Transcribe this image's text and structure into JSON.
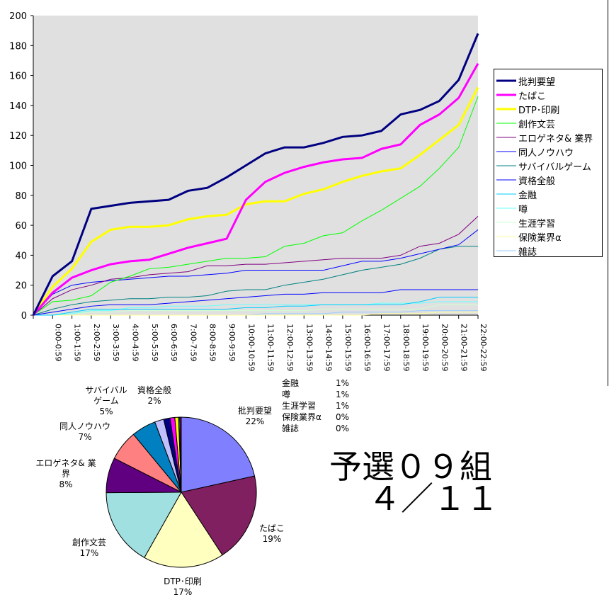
{
  "chart_data": [
    {
      "type": "line",
      "title": "",
      "xlabel": "",
      "ylabel": "",
      "ylim": [
        0,
        200
      ],
      "yticks": [
        0,
        20,
        40,
        60,
        80,
        100,
        120,
        140,
        160,
        180,
        200
      ],
      "grid": false,
      "legend_position": "right",
      "categories": [
        "",
        "0:00-0:59",
        "1:00-1:59",
        "2:00-2:59",
        "3:00-3:59",
        "4:00-4:59",
        "5:00-5:59",
        "6:00-6:59",
        "7:00-7:59",
        "8:00-8:59",
        "9:00-9:59",
        "10:00-10:59",
        "11:00-11:59",
        "12:00-12:59",
        "13:00-13:59",
        "14:00-14:59",
        "15:00-15:59",
        "16:00-16:59",
        "17:00-17:59",
        "18:00-18:59",
        "19:00-19:59",
        "20:00-20:59",
        "21:00-21:59",
        "22:00-22:59"
      ],
      "series": [
        {
          "name": "批判要望",
          "color": "#000080",
          "width": 3,
          "values": [
            0,
            26,
            36,
            71,
            73,
            75,
            76,
            77,
            83,
            85,
            92,
            100,
            108,
            112,
            112,
            115,
            119,
            120,
            123,
            134,
            137,
            143,
            157,
            188
          ]
        },
        {
          "name": "たばこ",
          "color": "#FF00FF",
          "width": 3,
          "values": [
            0,
            15,
            25,
            30,
            34,
            36,
            37,
            41,
            45,
            48,
            51,
            77,
            89,
            95,
            99,
            102,
            104,
            105,
            111,
            114,
            127,
            134,
            145,
            168
          ]
        },
        {
          "name": "DTP･印刷",
          "color": "#FFFF00",
          "width": 3,
          "values": [
            0,
            19,
            31,
            49,
            57,
            59,
            59,
            60,
            64,
            66,
            67,
            74,
            76,
            76,
            81,
            84,
            89,
            93,
            96,
            98,
            107,
            117,
            127,
            152
          ]
        },
        {
          "name": "創作文芸",
          "color": "#00FF00",
          "width": 1,
          "values": [
            0,
            9,
            10,
            13,
            22,
            26,
            31,
            32,
            34,
            36,
            38,
            38,
            39,
            46,
            48,
            53,
            55,
            63,
            70,
            78,
            86,
            98,
            112,
            146
          ]
        },
        {
          "name": "エロゲネタ& 業界",
          "color": "#800080",
          "width": 1,
          "values": [
            0,
            11,
            17,
            20,
            24,
            25,
            27,
            28,
            29,
            33,
            33,
            34,
            34,
            35,
            36,
            37,
            38,
            38,
            38,
            40,
            46,
            48,
            54,
            66
          ]
        },
        {
          "name": "同人ノウハウ",
          "color": "#0000FF",
          "width": 1,
          "values": [
            0,
            14,
            20,
            22,
            23,
            24,
            25,
            26,
            26,
            27,
            28,
            30,
            30,
            30,
            30,
            30,
            33,
            36,
            36,
            38,
            41,
            44,
            47,
            57
          ]
        },
        {
          "name": "サバイバルゲーム",
          "color": "#008080",
          "width": 1,
          "values": [
            0,
            4,
            7,
            9,
            10,
            11,
            11,
            12,
            12,
            13,
            16,
            17,
            17,
            20,
            22,
            24,
            27,
            30,
            32,
            34,
            38,
            44,
            46,
            46
          ]
        },
        {
          "name": "資格全般",
          "color": "#0000FF",
          "width": 1,
          "values": [
            0,
            2,
            4,
            6,
            7,
            7,
            7,
            8,
            9,
            10,
            11,
            12,
            13,
            14,
            14,
            15,
            15,
            15,
            15,
            17,
            17,
            17,
            17,
            17
          ]
        },
        {
          "name": "金融",
          "color": "#00CCFF",
          "width": 1,
          "values": [
            0,
            0,
            2,
            4,
            4,
            4,
            4,
            4,
            4,
            4,
            4,
            5,
            5,
            6,
            6,
            7,
            7,
            7,
            7,
            7,
            9,
            12,
            12,
            12
          ]
        },
        {
          "name": "噂",
          "color": "#66FFFF",
          "width": 1,
          "values": [
            0,
            0,
            1,
            3,
            3,
            5,
            5,
            6,
            6,
            6,
            7,
            7,
            7,
            7,
            7,
            7,
            7,
            7,
            8,
            8,
            8,
            9,
            9,
            9
          ]
        },
        {
          "name": "生涯学習",
          "color": "#CCFFCC",
          "width": 1,
          "values": [
            0,
            0,
            1,
            2,
            2,
            3,
            3,
            3,
            3,
            3,
            3,
            3,
            3,
            3,
            3,
            4,
            4,
            4,
            4,
            4,
            4,
            7,
            7,
            7
          ]
        },
        {
          "name": "保険業界α",
          "color": "#FFFF99",
          "width": 1,
          "values": [
            0,
            0,
            0,
            0,
            0,
            0,
            0,
            0,
            0,
            0,
            0,
            0,
            0,
            0,
            0,
            0,
            0,
            0,
            1,
            1,
            1,
            2,
            2,
            2
          ]
        },
        {
          "name": "雑誌",
          "color": "#99CCFF",
          "width": 1,
          "values": [
            0,
            0,
            0,
            0,
            0,
            0,
            0,
            0,
            0,
            0,
            0,
            0,
            1,
            1,
            1,
            1,
            2,
            2,
            2,
            2,
            3,
            3,
            3,
            3
          ]
        }
      ]
    },
    {
      "type": "pie",
      "slices": [
        {
          "label": [
            "批判要望"
          ],
          "pct": "22%",
          "value": 188,
          "color": "#8080FF"
        },
        {
          "label": [
            "たばこ"
          ],
          "pct": "19%",
          "value": 168,
          "color": "#802060"
        },
        {
          "label": [
            "DTP･印刷"
          ],
          "pct": "17%",
          "value": 152,
          "color": "#FFFFC0"
        },
        {
          "label": [
            "創作文芸"
          ],
          "pct": "17%",
          "value": 146,
          "color": "#A0E0E0"
        },
        {
          "label": [
            "エロゲネタ& 業",
            "界"
          ],
          "pct": "8%",
          "value": 66,
          "color": "#600080"
        },
        {
          "label": [
            "同人ノウハウ"
          ],
          "pct": "7%",
          "value": 57,
          "color": "#FF8080"
        },
        {
          "label": [
            "サバイバル",
            "ゲーム"
          ],
          "pct": "5%",
          "value": 46,
          "color": "#0080C0"
        },
        {
          "label": [
            "資格全般"
          ],
          "pct": "2%",
          "value": 17,
          "color": "#C0C0FF"
        },
        {
          "label": [
            "金融"
          ],
          "pct": "1%",
          "value": 12,
          "color": "#000080"
        },
        {
          "label": [
            "噂"
          ],
          "pct": "1%",
          "value": 9,
          "color": "#FF00FF"
        },
        {
          "label": [
            "生涯学習"
          ],
          "pct": "1%",
          "value": 7,
          "color": "#FFFF00"
        },
        {
          "label": [
            "保険業界α"
          ],
          "pct": "0%",
          "value": 2,
          "color": "#00FFFF"
        },
        {
          "label": [
            "雑誌"
          ],
          "pct": "0%",
          "value": 3,
          "color": "#800080"
        }
      ]
    }
  ],
  "caption": {
    "line1": "予選０９組",
    "line2": "４／１１"
  }
}
